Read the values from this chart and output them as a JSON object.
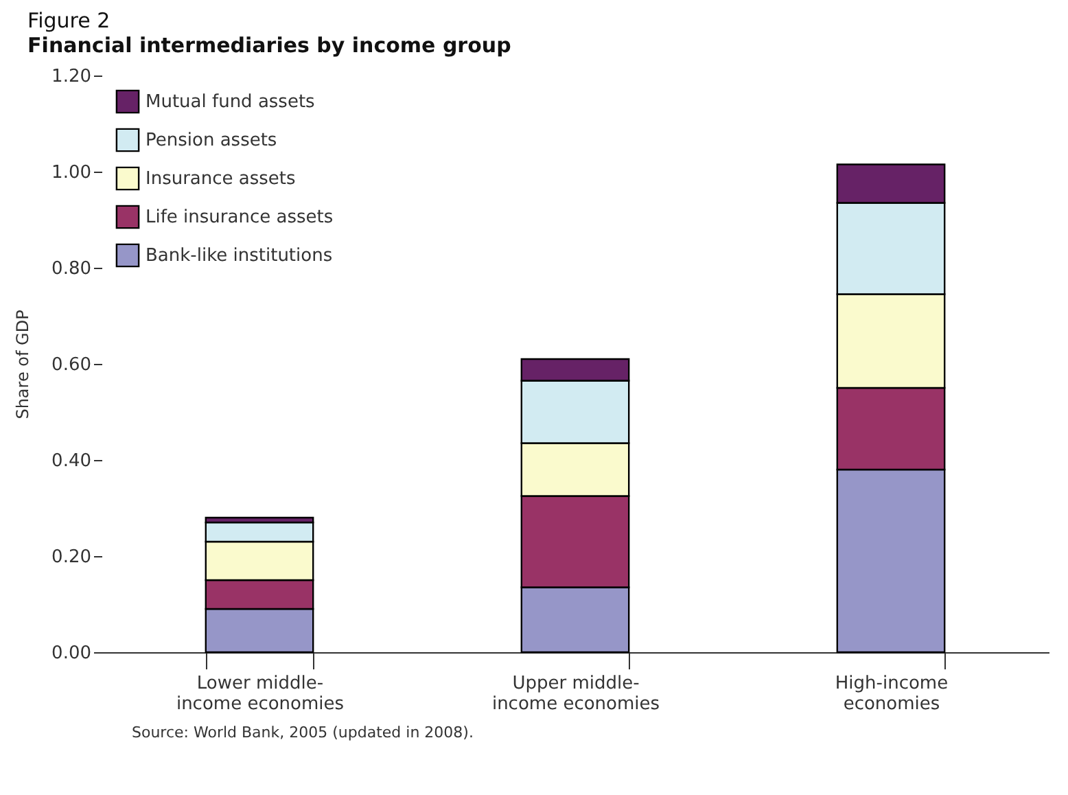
{
  "chart_data": {
    "type": "bar",
    "title": "Figure 2",
    "subtitle": "Financial intermediaries by income group",
    "ylabel": "Share of GDP",
    "categories": [
      "Lower middle-income economies",
      "Upper middle-income economies",
      "High-income economies"
    ],
    "stacked": true,
    "series": [
      {
        "name": "Bank-like institutions",
        "color": "#9696c8",
        "values": [
          0.09,
          0.135,
          0.38
        ]
      },
      {
        "name": "Life insurance assets",
        "color": "#993366",
        "values": [
          0.06,
          0.19,
          0.17
        ]
      },
      {
        "name": "Insurance assets",
        "color": "#fafacd",
        "values": [
          0.08,
          0.11,
          0.195
        ]
      },
      {
        "name": "Pension assets",
        "color": "#d2ebf2",
        "values": [
          0.04,
          0.13,
          0.19
        ]
      },
      {
        "name": "Mutual fund assets",
        "color": "#662266",
        "values": [
          0.01,
          0.045,
          0.08
        ]
      }
    ],
    "ylim": [
      0,
      1.2
    ],
    "yticks": [
      {
        "value": 0,
        "label": "0.00"
      },
      {
        "value": 0.2,
        "label": "0.20"
      },
      {
        "value": 0.4,
        "label": "0.40"
      },
      {
        "value": 0.6,
        "label": "0.60"
      },
      {
        "value": 0.8,
        "label": "0.80"
      },
      {
        "value": 1,
        "label": "1.00"
      },
      {
        "value": 1.2,
        "label": "1.20"
      }
    ],
    "grid": false,
    "legend": "top left",
    "annotations": [
      "Source: World Bank, 2005 (updated in 2008)."
    ]
  }
}
